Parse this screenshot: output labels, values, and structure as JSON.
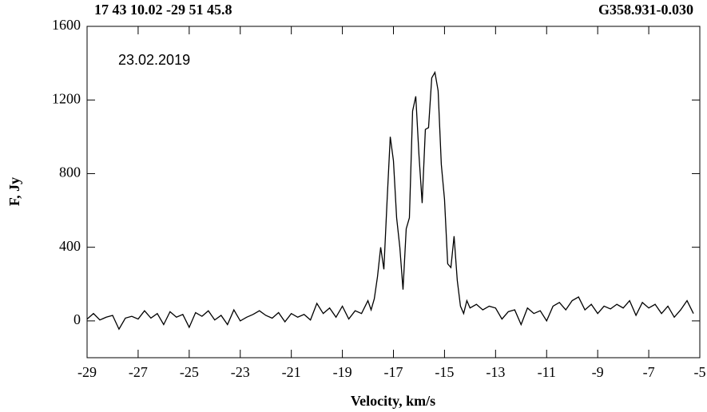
{
  "chart_data": {
    "type": "line",
    "title": "G358.931-0.030",
    "subtitle": "17 43 10.02  -29 51 45.8",
    "annotation": "23.02.2019",
    "x_label": "Velocity, km/s",
    "y_label": "F, Jy",
    "xlim": [
      -29,
      -5
    ],
    "ylim": [
      -200,
      1600
    ],
    "xticks": [
      -29,
      -27,
      -25,
      -23,
      -21,
      -19,
      -17,
      -15,
      -13,
      -11,
      -9,
      -7,
      -5
    ],
    "yticks": [
      0,
      400,
      800,
      1200,
      1600
    ],
    "color": "#000000",
    "x": [
      -29,
      -28.75,
      -28.5,
      -28.25,
      -28,
      -27.75,
      -27.5,
      -27.25,
      -27,
      -26.75,
      -26.5,
      -26.25,
      -26,
      -25.75,
      -25.5,
      -25.25,
      -25,
      -24.75,
      -24.5,
      -24.25,
      -24,
      -23.75,
      -23.5,
      -23.25,
      -23,
      -22.75,
      -22.5,
      -22.25,
      -22,
      -21.75,
      -21.5,
      -21.25,
      -21,
      -20.75,
      -20.5,
      -20.25,
      -20,
      -19.75,
      -19.5,
      -19.25,
      -19,
      -18.75,
      -18.5,
      -18.25,
      -18,
      -17.875,
      -17.75,
      -17.625,
      -17.5,
      -17.375,
      -17.25,
      -17.125,
      -17,
      -16.875,
      -16.75,
      -16.625,
      -16.5,
      -16.375,
      -16.25,
      -16.125,
      -16,
      -15.875,
      -15.75,
      -15.625,
      -15.5,
      -15.375,
      -15.25,
      -15.125,
      -15,
      -14.875,
      -14.75,
      -14.625,
      -14.5,
      -14.375,
      -14.25,
      -14.125,
      -14,
      -13.75,
      -13.5,
      -13.25,
      -13,
      -12.75,
      -12.5,
      -12.25,
      -12,
      -11.75,
      -11.5,
      -11.25,
      -11,
      -10.75,
      -10.5,
      -10.25,
      -10,
      -9.75,
      -9.5,
      -9.25,
      -9,
      -8.75,
      -8.5,
      -8.25,
      -8,
      -7.75,
      -7.5,
      -7.25,
      -7,
      -6.75,
      -6.5,
      -6.25,
      -6,
      -5.75,
      -5.5,
      -5.25
    ],
    "values": [
      10,
      40,
      5,
      20,
      30,
      -45,
      15,
      25,
      10,
      55,
      15,
      40,
      -20,
      50,
      20,
      35,
      -35,
      45,
      25,
      55,
      5,
      30,
      -20,
      60,
      0,
      20,
      35,
      55,
      30,
      15,
      45,
      -5,
      40,
      20,
      35,
      5,
      95,
      40,
      70,
      20,
      80,
      10,
      55,
      40,
      110,
      60,
      120,
      240,
      400,
      280,
      650,
      1000,
      870,
      560,
      400,
      170,
      500,
      560,
      1140,
      1220,
      900,
      640,
      1040,
      1050,
      1320,
      1350,
      1250,
      850,
      660,
      310,
      290,
      460,
      220,
      80,
      40,
      110,
      70,
      90,
      60,
      80,
      70,
      10,
      50,
      60,
      -20,
      70,
      40,
      55,
      0,
      80,
      100,
      60,
      110,
      130,
      60,
      90,
      40,
      80,
      65,
      90,
      70,
      110,
      30,
      100,
      70,
      90,
      40,
      80,
      20,
      60,
      110,
      40
    ]
  }
}
